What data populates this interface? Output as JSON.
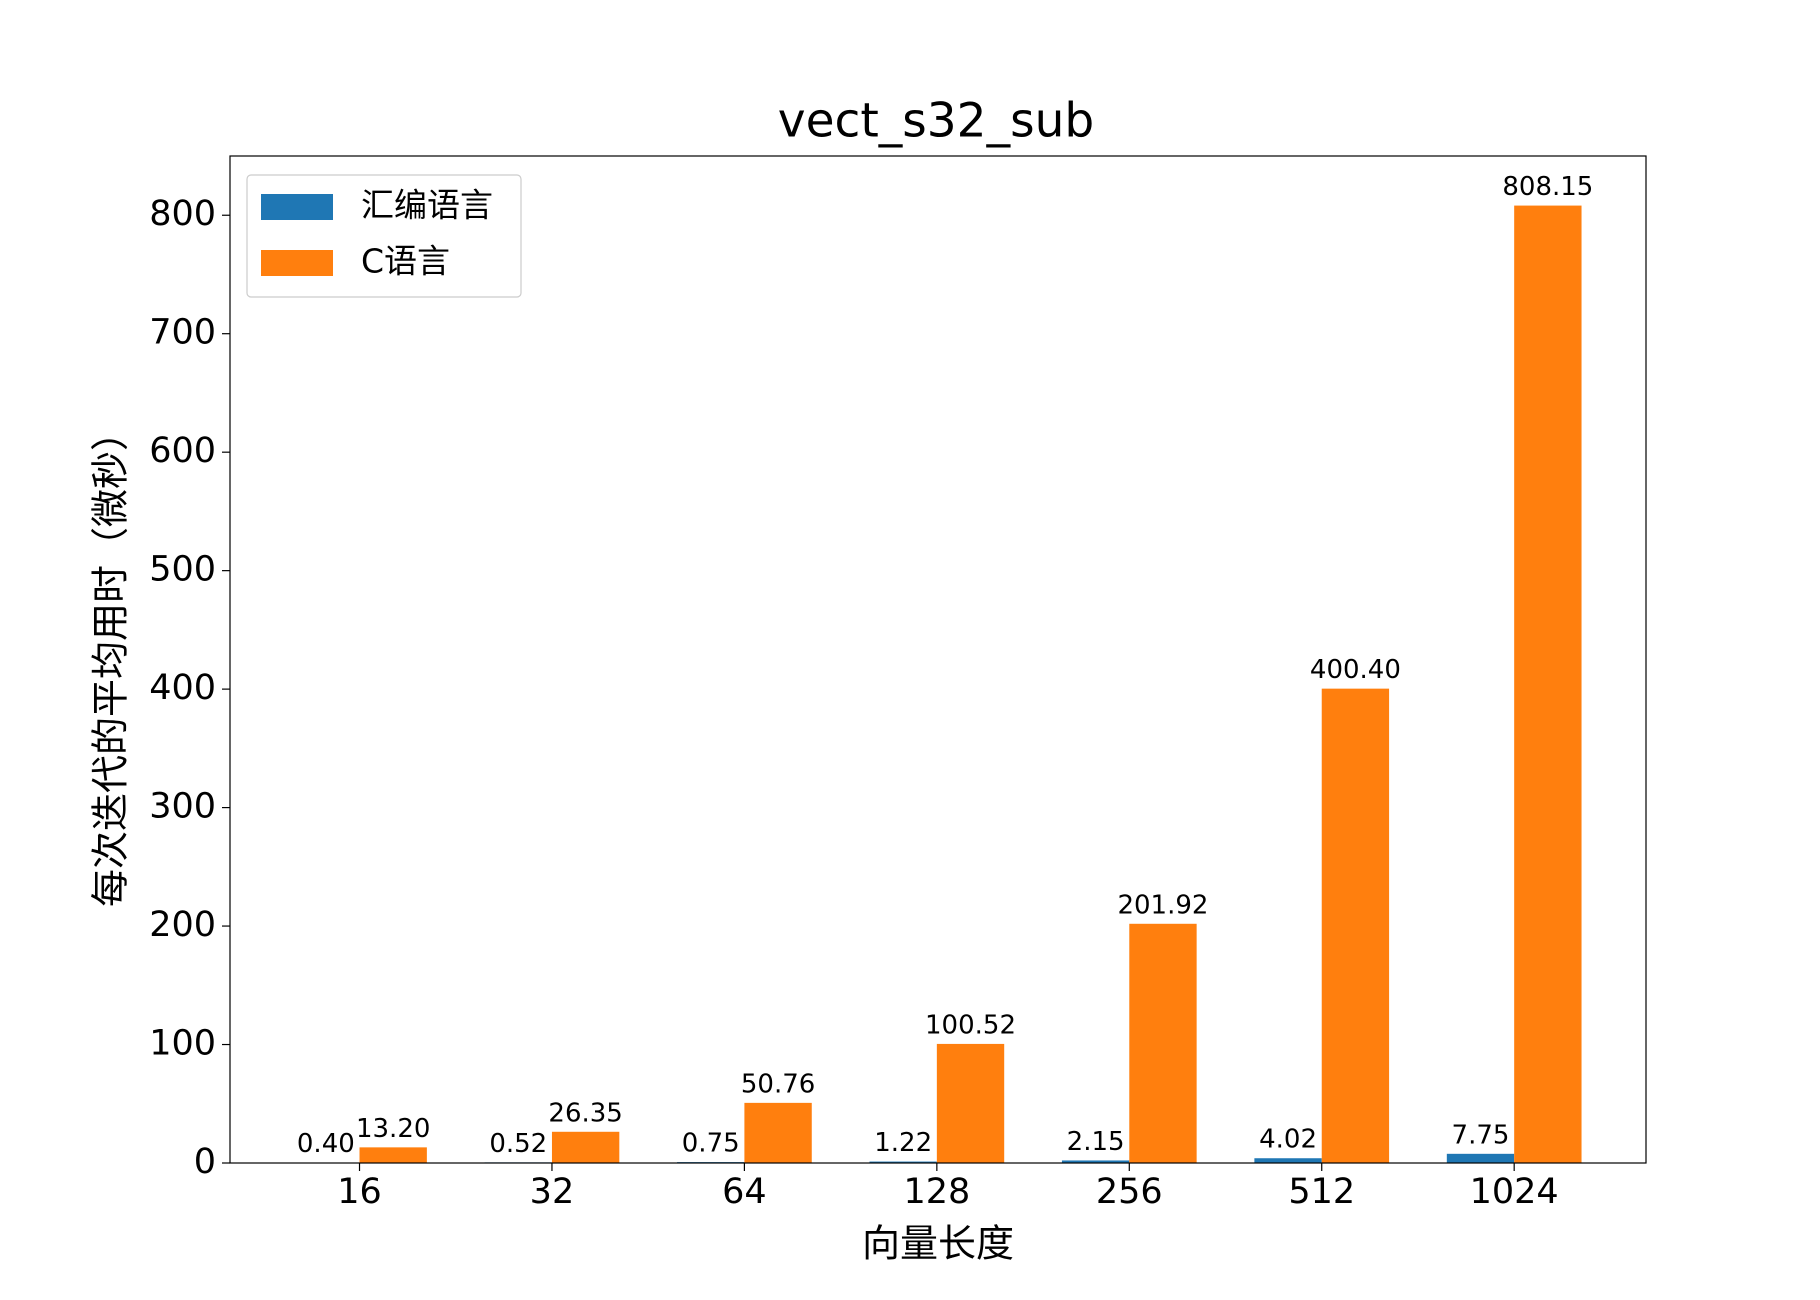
{
  "chart_data": {
    "type": "bar",
    "title": "vect_s32_sub",
    "x_label": "向量长度",
    "y_label": "每次迭代的平均用时（微秒）",
    "categories": [
      "16",
      "32",
      "64",
      "128",
      "256",
      "512",
      "1024"
    ],
    "series": [
      {
        "name": "汇编语言",
        "color": "#1f77b4",
        "values": [
          0.4,
          0.52,
          0.75,
          1.22,
          2.15,
          4.02,
          7.75
        ],
        "value_labels": [
          "0.40",
          "0.52",
          "0.75",
          "1.22",
          "2.15",
          "4.02",
          "7.75"
        ]
      },
      {
        "name": "C语言",
        "color": "#ff7f0e",
        "values": [
          13.2,
          26.35,
          50.76,
          100.52,
          201.92,
          400.4,
          808.15
        ],
        "value_labels": [
          "13.20",
          "26.35",
          "50.76",
          "100.52",
          "201.92",
          "400.40",
          "808.15"
        ]
      }
    ],
    "ylim": [
      0,
      850
    ],
    "yticks": [
      0,
      100,
      200,
      300,
      400,
      500,
      600,
      700,
      800
    ],
    "legend": "upper-left"
  }
}
